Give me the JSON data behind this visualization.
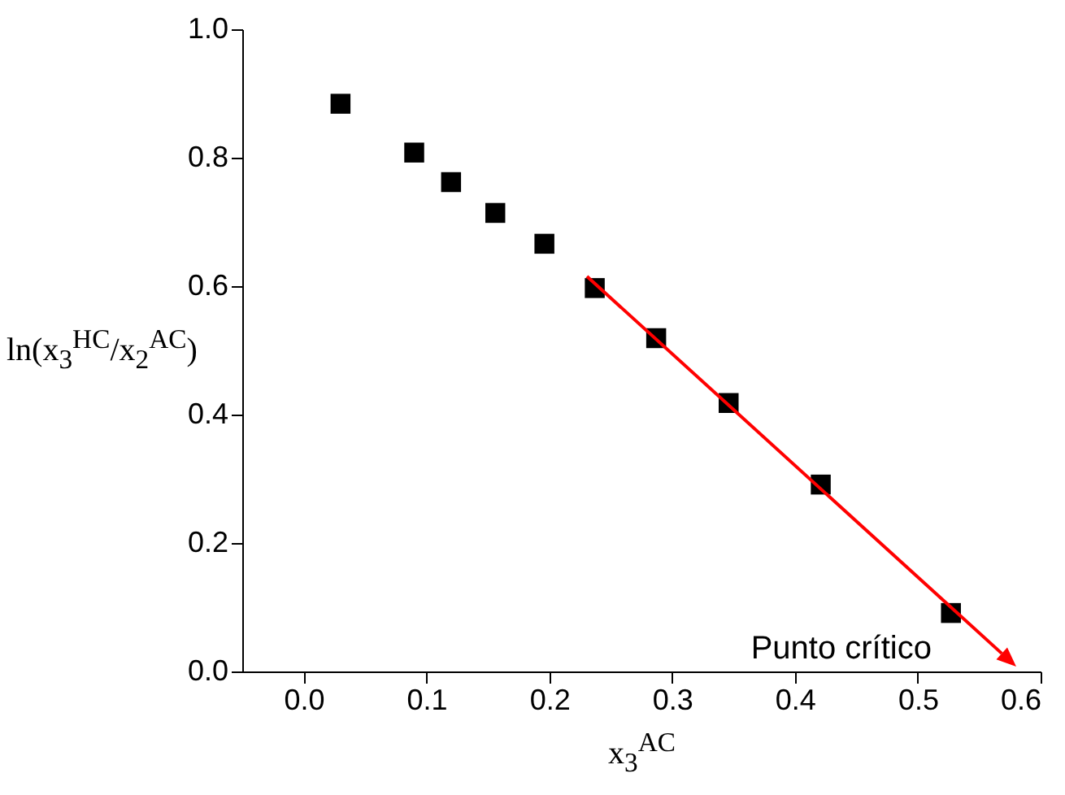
{
  "chart_data": {
    "type": "scatter",
    "xlabel": "x$_{3}$$^{AC}$",
    "ylabel": "ln(x$_{3}$$^{HC}$/x$_{2}$$^{AC}$)",
    "series": [
      {
        "color": "#000000",
        "marker": "square",
        "x": [
          0.03,
          0.09,
          0.12,
          0.156,
          0.196,
          0.237,
          0.287,
          0.346,
          0.421,
          0.527
        ],
        "values": [
          0.884,
          0.808,
          0.762,
          0.714,
          0.666,
          0.597,
          0.519,
          0.418,
          0.291,
          0.091
        ]
      }
    ],
    "annotations": [
      "Punto crítico"
    ],
    "xlim": [
      -0.05,
      0.6
    ],
    "xticks": [
      {
        "value": 0,
        "label": "0.0"
      },
      0.1,
      0.2,
      0.3,
      0.4,
      0.5,
      0.6
    ],
    "ylim": [
      0,
      1
    ],
    "yticks": [
      {
        "value": 0,
        "label": "0.0"
      },
      0.2,
      0.4,
      0.6,
      0.8,
      {
        "value": 1,
        "label": "1.0"
      }
    ],
    "grid": false
  }
}
